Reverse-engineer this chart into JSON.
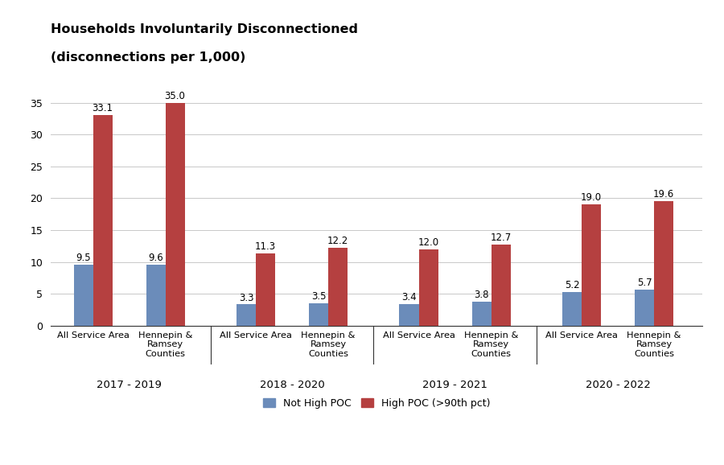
{
  "title_line1": "Households Involuntarily Disconnectioned",
  "title_line2": "(disconnections per 1,000)",
  "periods": [
    "2017 - 2019",
    "2018 - 2020",
    "2019 - 2021",
    "2020 - 2022"
  ],
  "not_high_poc": [
    9.5,
    9.6,
    3.3,
    3.5,
    3.4,
    3.8,
    5.2,
    5.7
  ],
  "high_poc": [
    33.1,
    35.0,
    11.3,
    12.2,
    12.0,
    12.7,
    19.0,
    19.6
  ],
  "not_high_poc_color": "#6b8cba",
  "high_poc_color": "#b54040",
  "ylim": [
    0,
    38
  ],
  "yticks": [
    0,
    5,
    10,
    15,
    20,
    25,
    30,
    35
  ],
  "legend_not_high": "Not High POC",
  "legend_high": "High POC (>90th pct)",
  "background_color": "#ffffff",
  "grid_color": "#c8c8c8",
  "label_fontsize": 8.5,
  "tick_fontsize": 9.0,
  "title_fontsize": 11.5,
  "legend_fontsize": 9.0
}
